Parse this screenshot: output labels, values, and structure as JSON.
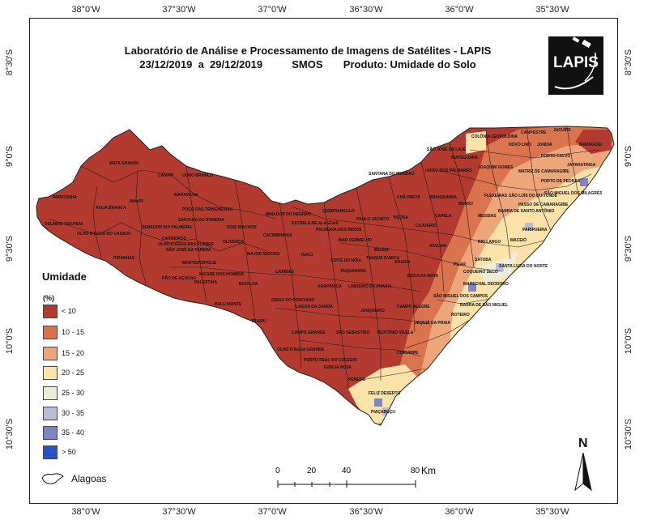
{
  "title_line1": "Laboratório de Análise e Processamento de Imagens de Satélites - LAPIS",
  "title_line2": "23/12/2019  a  29/12/2019          SMOS       Produto: Umidade do Solo",
  "logo_text": "LAPIS",
  "longitude_ticks": [
    "38°0'W",
    "37°30'W",
    "37°0'W",
    "36°30'W",
    "36°0'W",
    "35°30'W"
  ],
  "latitude_ticks": [
    "8°30'S",
    "9°0'S",
    "9°30'S",
    "10°0'S",
    "10°30'S"
  ],
  "legend": {
    "title": "Umidade",
    "unit": "(%)",
    "classes": [
      {
        "label": "< 10",
        "color": "#b33a2e"
      },
      {
        "label": "10 - 15",
        "color": "#d9744f"
      },
      {
        "label": "15 - 20",
        "color": "#eda57a"
      },
      {
        "label": "20 - 25",
        "color": "#fbe2a8"
      },
      {
        "label": "25 - 30",
        "color": "#eeeed8"
      },
      {
        "label": "30 - 35",
        "color": "#b8bcd6"
      },
      {
        "label": "35 - 40",
        "color": "#7f84c6"
      },
      {
        "label": "> 50",
        "color": "#2c52c8"
      }
    ]
  },
  "layer_label": "Alagoas",
  "scale": {
    "labels": [
      "0",
      "20",
      "40",
      "80"
    ],
    "unit": "Km"
  },
  "north_label": "N",
  "municipalities": [
    "MATA GRANDE",
    "CANAPI",
    "OURO BRANCO",
    "PARICONHA",
    "INHAPI",
    "MARAVILHA",
    "ÁGUA BRANCA",
    "DELMIRO GOUVEIA",
    "OLHO D'ÁGUA DO CASADO",
    "POÇO DAS TRINCHEIRAS",
    "SANTANA DO IPANEMA",
    "SENADOR RUI PALMEIRA",
    "CARNEIROS",
    "OLHO D'ÁGUA DAS FLORES",
    "SÃO JOSÉ DA TAPERA",
    "PIRANHAS",
    "OLIVENÇA",
    "DOIS RIACHOS",
    "MONTEIRÓPOLIS",
    "PÃO DE AÇÚCAR",
    "JACARÉ DOS HOMENS",
    "PALESTINA",
    "BATALHA",
    "BELO MONTE",
    "MAJOR ISIDORO",
    "CACIMBINHAS",
    "MINADOR DO NEGRÃO",
    "ESTRELA DE ALAGOAS",
    "QUEBRANGULO",
    "PALMEIRA DOS ÍNDIOS",
    "IGACI",
    "CRAÍBAS",
    "ARAPIRACA",
    "LAGOA DA CANOA",
    "GIRAU DO PONCIANO",
    "TRAIPU",
    "SÃO SEBASTIÃO",
    "CAMPO GRANDE",
    "OLHO D'ÁGUA GRANDE",
    "PORTO REAL DO COLÉGIO",
    "IGREJA NOVA",
    "PENEDO",
    "FELIZ DESERTO",
    "PIAÇABUÇU",
    "CORURIPE",
    "TEOTÔNIO VILELA",
    "JUNQUEIRO",
    "LIMOEIRO DE ANADIA",
    "TAQUARANA",
    "COITÉ DO NÓIA",
    "BELÉM",
    "TANQUE D'ARCA",
    "MAR VERMELHO",
    "PAULO JACINTO",
    "VIÇOSA",
    "CHÃ PRETA",
    "SANTANA DO MUNDAÚ",
    "UNIÃO DOS PALMARES",
    "SÃO JOSÉ DA LAJE",
    "IBATEGUARA",
    "COLÔNIA LEOPOLDINA",
    "NOVO LINO",
    "JUNDIÁ",
    "CAMPESTRE",
    "JACUÍPE",
    "PORTO CALVO",
    "MARAGOGI",
    "JOAQUIM GOMES",
    "MATRIZ DE CAMARAGIBE",
    "JAPARATINGA",
    "PORTO DE PEDRAS",
    "SÃO MIGUEL DOS MILAGRES",
    "FLEXEIRAS",
    "SÃO LUÍS DO QUITUNDE",
    "PASSO DE CAMARAGIBE",
    "BARRA DE SANTO ANTÔNIO",
    "MESSIAS",
    "MURICI",
    "BRANQUINHA",
    "CAPELA",
    "CAJUEIRO",
    "ATALAIA",
    "PILAR",
    "RIO LARGO",
    "PARIPUEIRA",
    "MACEIÓ",
    "SATUBA",
    "SANTA LUZIA DO NORTE",
    "COQUEIRO SECO",
    "MARECHAL DEODORO",
    "BOCA DA MATA",
    "ANADIA",
    "CAMPO ALEGRE",
    "SÃO MIGUEL DOS CAMPOS",
    "ROTEIRO",
    "BARRA DE SÃO MIGUEL",
    "JEQUIÁ DA PRAIA"
  ]
}
